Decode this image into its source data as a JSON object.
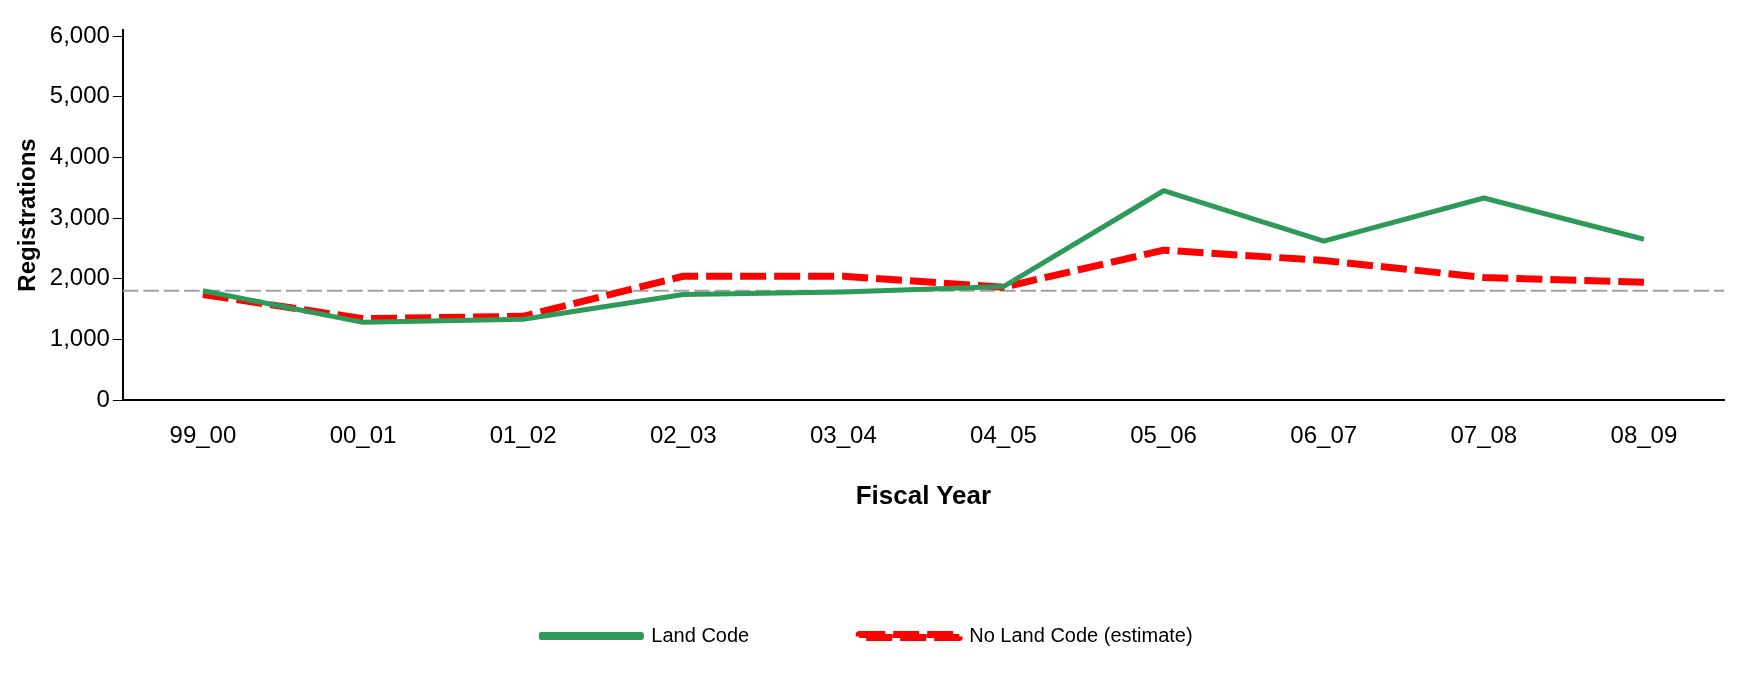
{
  "chart_data": {
    "type": "line",
    "xlabel": "Fiscal Year",
    "ylabel": "Registrations",
    "categories": [
      "99_00",
      "00_01",
      "01_02",
      "02_03",
      "03_04",
      "04_05",
      "05_06",
      "06_07",
      "07_08",
      "08_09"
    ],
    "series": [
      {
        "name": "Land Code",
        "color": "#2e9a5a",
        "values": [
          1800,
          1280,
          1330,
          1740,
          1780,
          1870,
          3450,
          2620,
          3330,
          2650
        ],
        "line_style": "solid"
      },
      {
        "name": "No Land Code (estimate)",
        "color": "#ff0000",
        "values": [
          1740,
          1340,
          1380,
          2040,
          2040,
          1860,
          2470,
          2300,
          2020,
          1940
        ],
        "line_style": "dashed"
      }
    ],
    "ylim": [
      0,
      6100
    ],
    "yticks": [
      {
        "value": 0,
        "label": "0"
      },
      {
        "value": 1000,
        "label": "1,000"
      },
      {
        "value": 2000,
        "label": "2,000"
      },
      {
        "value": 3000,
        "label": "3,000"
      },
      {
        "value": 4000,
        "label": "4,000"
      },
      {
        "value": 5000,
        "label": "5,000"
      },
      {
        "value": 6000,
        "label": "6,000"
      }
    ],
    "ref_lines": [
      {
        "axis": "y",
        "value": 1800,
        "color": "#a0a0a0",
        "line_style": "dashed"
      }
    ],
    "grid": false,
    "legend": "bottom",
    "marker": "none"
  }
}
